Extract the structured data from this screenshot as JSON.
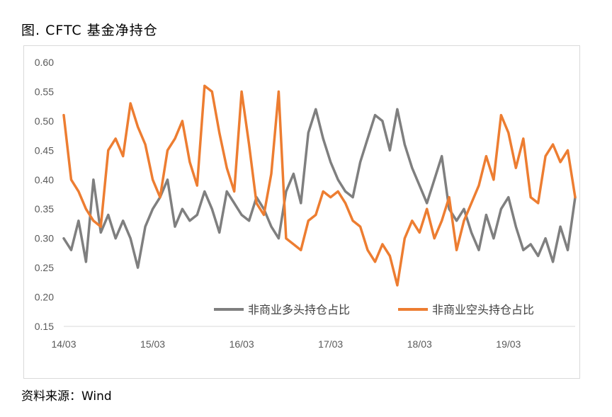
{
  "figure": {
    "title": "图. CFTC 基金净持仓",
    "source": "资料来源：Wind"
  },
  "chart_data": {
    "type": "line",
    "ylim": [
      0.15,
      0.6
    ],
    "yticks": [
      "0.60",
      "0.55",
      "0.50",
      "0.45",
      "0.40",
      "0.35",
      "0.30",
      "0.25",
      "0.20",
      "0.15"
    ],
    "xticks": [
      "14/03",
      "15/03",
      "16/03",
      "17/03",
      "18/03",
      "19/03"
    ],
    "xlim": [
      "2014-03",
      "2019-12"
    ],
    "legend_position": "bottom-right",
    "series": [
      {
        "name": "非商业多头持仓占比",
        "color": "#7f7f7f",
        "x": [
          "2014-03",
          "2014-04",
          "2014-05",
          "2014-06",
          "2014-07",
          "2014-08",
          "2014-09",
          "2014-10",
          "2014-11",
          "2014-12",
          "2015-01",
          "2015-02",
          "2015-03",
          "2015-04",
          "2015-05",
          "2015-06",
          "2015-07",
          "2015-08",
          "2015-09",
          "2015-10",
          "2015-11",
          "2015-12",
          "2016-01",
          "2016-02",
          "2016-03",
          "2016-04",
          "2016-05",
          "2016-06",
          "2016-07",
          "2016-08",
          "2016-09",
          "2016-10",
          "2016-11",
          "2016-12",
          "2017-01",
          "2017-02",
          "2017-03",
          "2017-04",
          "2017-05",
          "2017-06",
          "2017-07",
          "2017-08",
          "2017-09",
          "2017-10",
          "2017-11",
          "2017-12",
          "2018-01",
          "2018-02",
          "2018-03",
          "2018-04",
          "2018-05",
          "2018-06",
          "2018-07",
          "2018-08",
          "2018-09",
          "2018-10",
          "2018-11",
          "2018-12",
          "2019-01",
          "2019-02",
          "2019-03",
          "2019-04",
          "2019-05",
          "2019-06",
          "2019-07",
          "2019-08",
          "2019-09",
          "2019-10",
          "2019-11",
          "2019-12"
        ],
        "values": [
          0.3,
          0.28,
          0.33,
          0.26,
          0.4,
          0.31,
          0.34,
          0.3,
          0.33,
          0.3,
          0.25,
          0.32,
          0.35,
          0.37,
          0.4,
          0.32,
          0.35,
          0.33,
          0.34,
          0.38,
          0.35,
          0.31,
          0.38,
          0.36,
          0.34,
          0.33,
          0.37,
          0.35,
          0.32,
          0.3,
          0.38,
          0.41,
          0.36,
          0.48,
          0.52,
          0.47,
          0.43,
          0.4,
          0.38,
          0.37,
          0.43,
          0.47,
          0.51,
          0.5,
          0.45,
          0.52,
          0.46,
          0.42,
          0.39,
          0.36,
          0.4,
          0.44,
          0.35,
          0.33,
          0.35,
          0.31,
          0.28,
          0.34,
          0.3,
          0.35,
          0.37,
          0.32,
          0.28,
          0.29,
          0.27,
          0.3,
          0.26,
          0.32,
          0.28,
          0.37
        ]
      },
      {
        "name": "非商业空头持仓占比",
        "color": "#ed7d31",
        "x": [
          "2014-03",
          "2014-04",
          "2014-05",
          "2014-06",
          "2014-07",
          "2014-08",
          "2014-09",
          "2014-10",
          "2014-11",
          "2014-12",
          "2015-01",
          "2015-02",
          "2015-03",
          "2015-04",
          "2015-05",
          "2015-06",
          "2015-07",
          "2015-08",
          "2015-09",
          "2015-10",
          "2015-11",
          "2015-12",
          "2016-01",
          "2016-02",
          "2016-03",
          "2016-04",
          "2016-05",
          "2016-06",
          "2016-07",
          "2016-08",
          "2016-09",
          "2016-10",
          "2016-11",
          "2016-12",
          "2017-01",
          "2017-02",
          "2017-03",
          "2017-04",
          "2017-05",
          "2017-06",
          "2017-07",
          "2017-08",
          "2017-09",
          "2017-10",
          "2017-11",
          "2017-12",
          "2018-01",
          "2018-02",
          "2018-03",
          "2018-04",
          "2018-05",
          "2018-06",
          "2018-07",
          "2018-08",
          "2018-09",
          "2018-10",
          "2018-11",
          "2018-12",
          "2019-01",
          "2019-02",
          "2019-03",
          "2019-04",
          "2019-05",
          "2019-06",
          "2019-07",
          "2019-08",
          "2019-09",
          "2019-10",
          "2019-11",
          "2019-12"
        ],
        "values": [
          0.51,
          0.4,
          0.38,
          0.35,
          0.33,
          0.32,
          0.45,
          0.47,
          0.44,
          0.53,
          0.49,
          0.46,
          0.4,
          0.37,
          0.45,
          0.47,
          0.5,
          0.43,
          0.39,
          0.56,
          0.55,
          0.48,
          0.42,
          0.38,
          0.55,
          0.46,
          0.36,
          0.34,
          0.41,
          0.55,
          0.3,
          0.29,
          0.28,
          0.33,
          0.34,
          0.38,
          0.37,
          0.38,
          0.36,
          0.33,
          0.32,
          0.28,
          0.26,
          0.29,
          0.27,
          0.22,
          0.3,
          0.33,
          0.31,
          0.35,
          0.3,
          0.33,
          0.37,
          0.28,
          0.33,
          0.36,
          0.39,
          0.44,
          0.4,
          0.51,
          0.48,
          0.42,
          0.47,
          0.37,
          0.36,
          0.44,
          0.46,
          0.43,
          0.45,
          0.37
        ]
      }
    ]
  }
}
